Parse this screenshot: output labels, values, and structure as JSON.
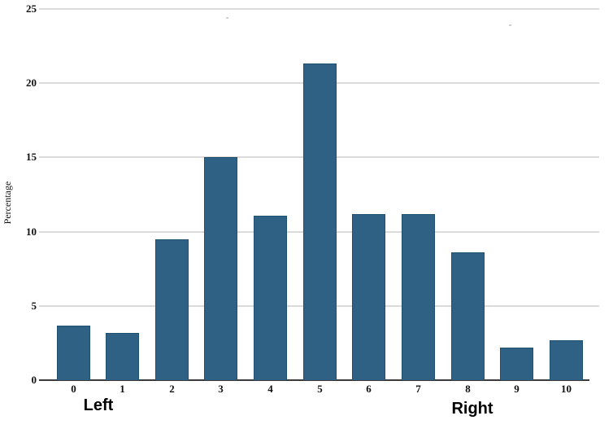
{
  "chart_data": {
    "type": "bar",
    "title": "",
    "categories": [
      "0",
      "1",
      "2",
      "3",
      "4",
      "5",
      "6",
      "7",
      "8",
      "9",
      "10"
    ],
    "values": [
      3.7,
      3.2,
      9.5,
      15.0,
      11.1,
      21.3,
      11.2,
      11.2,
      8.6,
      2.2,
      2.7
    ],
    "xlabel": "",
    "ylabel": "Percentage",
    "x_group_labels": {
      "left": "Left",
      "right": "Right"
    },
    "ylim": [
      0,
      25
    ],
    "yticks": [
      0,
      5,
      10,
      15,
      20,
      25
    ],
    "grid": "horizontal",
    "legend": "none",
    "colors": {
      "bar_fill": "#2E6184",
      "bar_border": "#20506F",
      "gridline": "#DADADA",
      "axis_line": "#3B3B3B",
      "text": "#111111"
    }
  }
}
